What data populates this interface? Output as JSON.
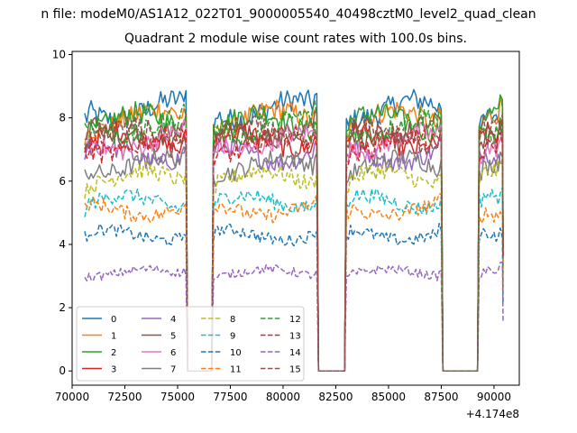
{
  "suptitle": "n file: modeM0/AS1A12_022T01_9000005540_40498cztM0_level2_quad_clean",
  "chart_data": {
    "type": "line",
    "title": "Quadrant 2 module wise count rates with 100.0s bins.",
    "xlabel": "",
    "ylabel": "",
    "x_offset_label": "+4.174e8",
    "xlim": [
      70000,
      91200
    ],
    "ylim": [
      -0.45,
      10.1
    ],
    "x_ticks": [
      70000,
      72500,
      75000,
      77500,
      80000,
      82500,
      85000,
      87500,
      90000
    ],
    "x_tick_labels": [
      "70000",
      "72500",
      "75000",
      "77500",
      "80000",
      "82500",
      "85000",
      "87500",
      "90000"
    ],
    "y_ticks": [
      0,
      2,
      4,
      6,
      8,
      10
    ],
    "y_tick_labels": [
      "0",
      "2",
      "4",
      "6",
      "8",
      "10"
    ],
    "grid": false,
    "legend_placement": "lower-left",
    "legend_columns": 4,
    "segments": [
      [
        70600,
        75400
      ],
      [
        76700,
        81600
      ],
      [
        83000,
        87500
      ],
      [
        89300,
        90400
      ]
    ],
    "gaps": [
      [
        75400,
        76700
      ],
      [
        81600,
        83000
      ],
      [
        87500,
        89300
      ]
    ],
    "series": [
      {
        "name": "0",
        "level": 8.25,
        "color": "#1f77b4",
        "dash": "solid"
      },
      {
        "name": "1",
        "level": 7.95,
        "color": "#ff7f0e",
        "dash": "solid"
      },
      {
        "name": "2",
        "level": 7.85,
        "color": "#2ca02c",
        "dash": "solid"
      },
      {
        "name": "3",
        "level": 7.3,
        "color": "#d62728",
        "dash": "solid"
      },
      {
        "name": "4",
        "level": 6.85,
        "color": "#9467bd",
        "dash": "solid"
      },
      {
        "name": "5",
        "level": 7.55,
        "color": "#8c564b",
        "dash": "solid"
      },
      {
        "name": "6",
        "level": 7.25,
        "color": "#e377c2",
        "dash": "solid"
      },
      {
        "name": "7",
        "level": 6.5,
        "color": "#7f7f7f",
        "dash": "solid"
      },
      {
        "name": "8",
        "level": 6.1,
        "color": "#bcbd22",
        "dash": "dashed"
      },
      {
        "name": "9",
        "level": 5.35,
        "color": "#17becf",
        "dash": "dashed"
      },
      {
        "name": "10",
        "level": 4.3,
        "color": "#1f77b4",
        "dash": "dashed"
      },
      {
        "name": "11",
        "level": 5.1,
        "color": "#ff7f0e",
        "dash": "dashed"
      },
      {
        "name": "12",
        "level": 7.75,
        "color": "#2ca02c",
        "dash": "dashed"
      },
      {
        "name": "13",
        "level": 7.15,
        "color": "#d62728",
        "dash": "dashed"
      },
      {
        "name": "14",
        "level": 3.1,
        "color": "#9467bd",
        "dash": "dashed"
      },
      {
        "name": "15",
        "level": 7.45,
        "color": "#8c564b",
        "dash": "dashed"
      }
    ]
  }
}
